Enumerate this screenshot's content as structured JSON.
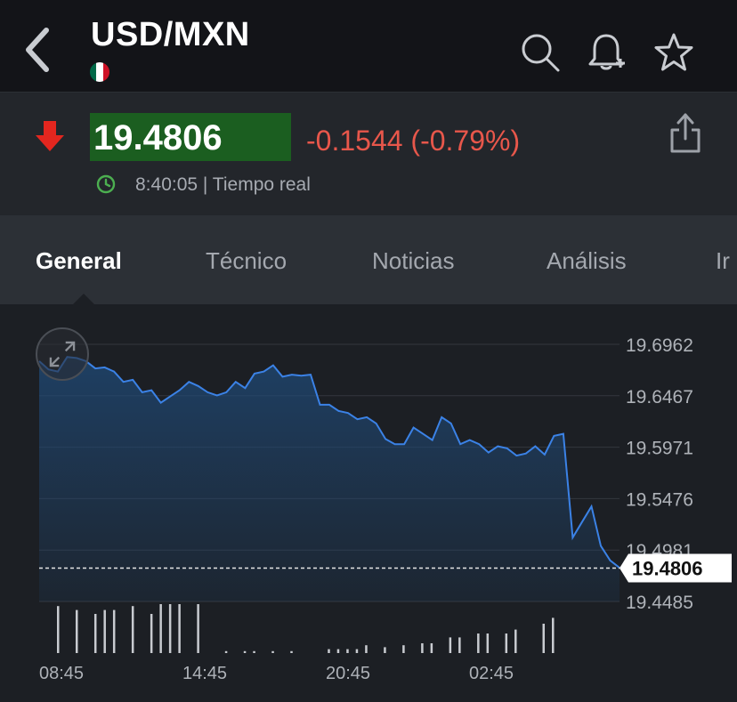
{
  "header": {
    "title": "USD/MXN",
    "flag_colors": [
      "#006847",
      "#ffffff",
      "#ce1126"
    ],
    "icons": [
      "back-chevron-icon",
      "search-icon",
      "bell-add-icon",
      "star-icon"
    ]
  },
  "quote": {
    "price": "19.4806",
    "change": "-0.1544 (-0.79%)",
    "time": "8:40:05 | Tiempo real",
    "direction": "down",
    "colors": {
      "down": "#e8574b",
      "arrow": "#e3261f",
      "price_bg": "#1b5e20",
      "live": "#4caf50"
    }
  },
  "tabs": [
    {
      "label": "General",
      "active": true
    },
    {
      "label": "Técnico",
      "active": false
    },
    {
      "label": "Noticias",
      "active": false
    },
    {
      "label": "Análisis",
      "active": false
    },
    {
      "label": "Ir",
      "active": false
    }
  ],
  "chart_data": {
    "type": "area",
    "y_ticks": [
      "19.6962",
      "19.6467",
      "19.5971",
      "19.5476",
      "19.4981",
      "19.4485"
    ],
    "ylim": [
      19.4485,
      19.6962
    ],
    "x_ticks": [
      "08:45",
      "14:45",
      "20:45",
      "02:45"
    ],
    "current_label": "19.4806",
    "current_value": 19.4806,
    "line_color": "#3b82e6",
    "grid": true,
    "series": [
      {
        "values": [
          19.68,
          19.672,
          19.67,
          19.684,
          19.683,
          19.68,
          19.673,
          19.674,
          19.67,
          19.66,
          19.662,
          19.65,
          19.652,
          19.64,
          19.646,
          19.652,
          19.66,
          19.656,
          19.65,
          19.647,
          19.65,
          19.66,
          19.654,
          19.668,
          19.67,
          19.676,
          19.665,
          19.667,
          19.666,
          19.667,
          19.638,
          19.638,
          19.632,
          19.63,
          19.624,
          19.626,
          19.62,
          19.605,
          19.6,
          19.6,
          19.616,
          19.61,
          19.604,
          19.626,
          19.62,
          19.6,
          19.604,
          19.6,
          19.592,
          19.598,
          19.596,
          19.589,
          19.591,
          19.598,
          19.59,
          19.608,
          19.61,
          19.51,
          19.525,
          19.54,
          19.502,
          19.488,
          19.481
        ]
      }
    ],
    "volume": [
      24,
      0,
      22,
      0,
      20,
      22,
      22,
      0,
      24,
      0,
      20,
      25,
      25,
      25,
      0,
      25,
      0,
      0,
      1,
      0,
      1,
      1,
      0,
      1,
      0,
      1,
      0,
      0,
      0,
      2,
      2,
      2,
      2,
      4,
      0,
      3,
      0,
      4,
      0,
      5,
      5,
      0,
      8,
      8,
      0,
      10,
      10,
      0,
      10,
      12,
      0,
      0,
      15,
      18
    ]
  }
}
